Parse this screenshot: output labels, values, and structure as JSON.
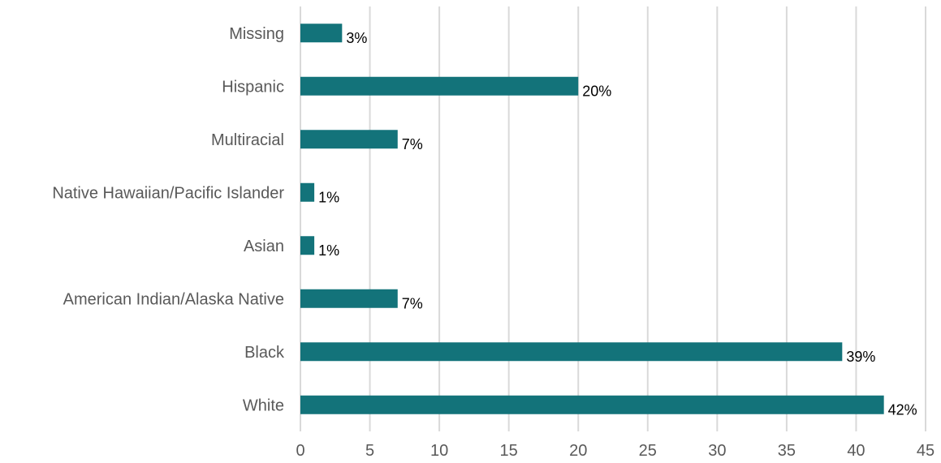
{
  "chart_data": {
    "type": "bar",
    "orientation": "horizontal",
    "categories": [
      "Missing",
      "Hispanic",
      "Multiracial",
      "Native Hawaiian/Pacific Islander",
      "Asian",
      "American Indian/Alaska Native",
      "Black",
      "White"
    ],
    "values": [
      3,
      20,
      7,
      1,
      1,
      7,
      39,
      42
    ],
    "data_labels": [
      "3%",
      "20%",
      "7%",
      "1%",
      "1%",
      "7%",
      "39%",
      "42%"
    ],
    "xlim": [
      0,
      45
    ],
    "xticks": [
      0,
      5,
      10,
      15,
      20,
      25,
      30,
      35,
      40,
      45
    ],
    "grid": "vertical",
    "legend": "none",
    "bar_color": "#13737a",
    "title": "",
    "xlabel": "",
    "ylabel": ""
  }
}
